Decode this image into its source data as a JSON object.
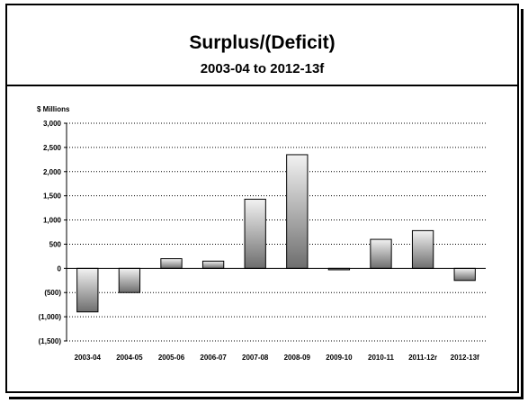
{
  "chart_data": {
    "type": "bar",
    "title": "Surplus/(Deficit)",
    "subtitle": "2003-04 to 2012-13f",
    "ylabel": "$ Millions",
    "xlabel": "",
    "categories": [
      "2003-04",
      "2004-05",
      "2005-06",
      "2006-07",
      "2007-08",
      "2008-09",
      "2009-10",
      "2010-11",
      "2011-12r",
      "2012-13f"
    ],
    "values": [
      -900,
      -500,
      200,
      150,
      1430,
      2350,
      -30,
      600,
      780,
      -250
    ],
    "ylim": [
      -1500,
      3000
    ],
    "yticks": [
      3000,
      2500,
      2000,
      1500,
      1000,
      500,
      0,
      -500,
      -1000,
      -1500
    ],
    "ytick_labels": [
      "3,000",
      "2,500",
      "2,000",
      "1,500",
      "1,000",
      "500",
      "0",
      "(500)",
      "(1,000)",
      "(1,500)"
    ],
    "grid": true,
    "bar_gradient": [
      "#f2f2f2",
      "#6e6e6e"
    ]
  }
}
